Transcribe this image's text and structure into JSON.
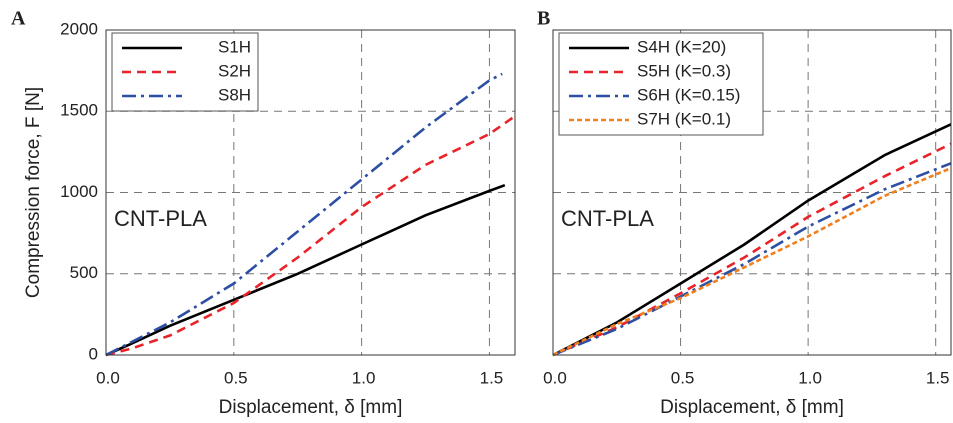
{
  "chart_data": [
    {
      "type": "line",
      "panel_label": "A",
      "x_label": "Displacement, δ  [mm]",
      "y_label": "Compression force, F [N]",
      "annotation": "CNT-PLA",
      "xlim": [
        0,
        1.6
      ],
      "ylim": [
        0,
        2000
      ],
      "xticks": [
        {
          "value": 0,
          "label": "0.0"
        },
        0.5,
        {
          "value": 1,
          "label": "1.0"
        },
        1.5
      ],
      "yticks": [
        0,
        500,
        1000,
        1500,
        2000
      ],
      "show_ytick_labels": true,
      "grid": true,
      "legend": "upper left",
      "series": [
        {
          "name": "S1H",
          "color": "#000000",
          "dash": "solid",
          "x": [
            0,
            0.1,
            0.25,
            0.5,
            0.75,
            1.0,
            1.25,
            1.5,
            1.56
          ],
          "values": [
            0,
            70,
            180,
            340,
            500,
            680,
            860,
            1010,
            1045
          ]
        },
        {
          "name": "S2H",
          "color": "#e8232a",
          "dash": "dashed",
          "x": [
            0,
            0.1,
            0.25,
            0.5,
            0.75,
            1.0,
            1.25,
            1.5,
            1.6
          ],
          "values": [
            0,
            40,
            120,
            320,
            600,
            910,
            1170,
            1360,
            1470
          ]
        },
        {
          "name": "S8H",
          "color": "#2d4fa3",
          "dash": "dashdot",
          "x": [
            0,
            0.1,
            0.25,
            0.5,
            0.75,
            1.0,
            1.25,
            1.5,
            1.55
          ],
          "values": [
            0,
            80,
            200,
            440,
            760,
            1080,
            1400,
            1690,
            1730
          ]
        }
      ]
    },
    {
      "type": "line",
      "panel_label": "B",
      "x_label": "Displacement, δ  [mm]",
      "annotation": "CNT-PLA",
      "xlim": [
        0,
        1.56
      ],
      "ylim": [
        0,
        2000
      ],
      "xticks": [
        {
          "value": 0,
          "label": "0.0"
        },
        0.5,
        {
          "value": 1,
          "label": "1.0"
        },
        1.5
      ],
      "yticks": [
        0,
        500,
        1000,
        1500,
        2000
      ],
      "show_ytick_labels": false,
      "grid": true,
      "legend": "upper left",
      "series": [
        {
          "name": "S4H (K=20)",
          "color": "#000000",
          "dash": "solid",
          "x": [
            0,
            0.25,
            0.5,
            0.75,
            1.0,
            1.3,
            1.56
          ],
          "values": [
            0,
            200,
            440,
            680,
            950,
            1230,
            1420
          ]
        },
        {
          "name": "S5H (K=0.3)",
          "color": "#e8232a",
          "dash": "dashed",
          "x": [
            0,
            0.25,
            0.5,
            0.75,
            1.0,
            1.3,
            1.56
          ],
          "values": [
            0,
            170,
            380,
            600,
            850,
            1100,
            1300
          ]
        },
        {
          "name": "S6H (K=0.15)",
          "color": "#2d4fa3",
          "dash": "dashdot",
          "x": [
            0,
            0.25,
            0.5,
            0.75,
            1.0,
            1.3,
            1.56
          ],
          "values": [
            0,
            160,
            360,
            560,
            790,
            1020,
            1180
          ]
        },
        {
          "name": "S7H (K=0.1)",
          "color": "#f07f1e",
          "dash": "short",
          "x": [
            0,
            0.25,
            0.5,
            0.75,
            1.0,
            1.3,
            1.56
          ],
          "values": [
            0,
            190,
            350,
            540,
            730,
            980,
            1150
          ]
        }
      ]
    }
  ]
}
